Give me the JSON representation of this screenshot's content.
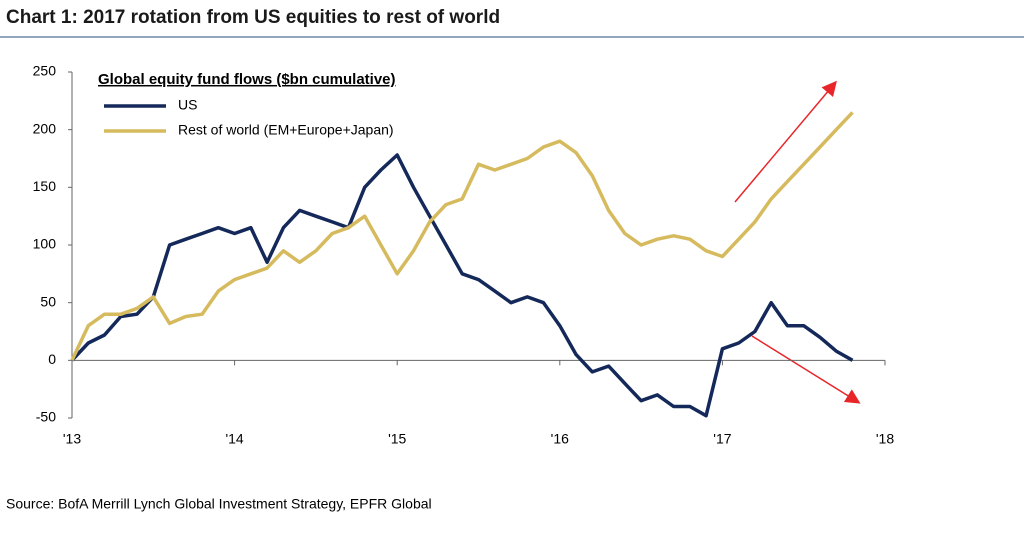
{
  "chart_data": {
    "type": "line",
    "title": "Chart 1: 2017 rotation from US equities to rest of world",
    "legend_title": "Global equity fund flows ($bn cumulative)",
    "source": "Source: BofA Merrill Lynch Global Investment Strategy, EPFR Global",
    "x": [
      2013.0,
      2013.1,
      2013.2,
      2013.3,
      2013.4,
      2013.5,
      2013.6,
      2013.7,
      2013.8,
      2013.9,
      2014.0,
      2014.1,
      2014.2,
      2014.3,
      2014.4,
      2014.5,
      2014.6,
      2014.7,
      2014.8,
      2014.9,
      2015.0,
      2015.1,
      2015.2,
      2015.3,
      2015.4,
      2015.5,
      2015.6,
      2015.7,
      2015.8,
      2015.9,
      2016.0,
      2016.1,
      2016.2,
      2016.3,
      2016.4,
      2016.5,
      2016.6,
      2016.7,
      2016.8,
      2016.9,
      2017.0,
      2017.1,
      2017.2,
      2017.3,
      2017.4,
      2017.5,
      2017.6,
      2017.7,
      2017.8
    ],
    "series": [
      {
        "name": "US",
        "color": "#14295a",
        "values": [
          0,
          15,
          22,
          38,
          40,
          55,
          100,
          105,
          110,
          115,
          110,
          115,
          85,
          115,
          130,
          125,
          120,
          115,
          150,
          165,
          178,
          150,
          125,
          100,
          75,
          70,
          60,
          50,
          55,
          50,
          30,
          5,
          -10,
          -5,
          -20,
          -35,
          -30,
          -40,
          -40,
          -48,
          10,
          15,
          25,
          50,
          30,
          30,
          20,
          8,
          0
        ]
      },
      {
        "name": "Rest of world (EM+Europe+Japan)",
        "color": "#d6ba5e",
        "values": [
          0,
          30,
          40,
          40,
          45,
          55,
          32,
          38,
          40,
          60,
          70,
          75,
          80,
          95,
          85,
          95,
          110,
          115,
          125,
          100,
          75,
          95,
          120,
          135,
          140,
          170,
          165,
          170,
          175,
          185,
          190,
          180,
          160,
          130,
          110,
          100,
          105,
          108,
          105,
          95,
          90,
          105,
          120,
          140,
          155,
          170,
          185,
          200,
          215
        ]
      }
    ],
    "xlim": [
      2013,
      2018
    ],
    "xticks": [
      {
        "value": 2013,
        "label": "'13"
      },
      {
        "value": 2014,
        "label": "'14"
      },
      {
        "value": 2015,
        "label": "'15"
      },
      {
        "value": 2016,
        "label": "'16"
      },
      {
        "value": 2017,
        "label": "'17"
      },
      {
        "value": 2018,
        "label": "'18"
      }
    ],
    "ylim": [
      -50,
      250
    ],
    "yticks": [
      -50,
      0,
      50,
      100,
      150,
      200,
      250
    ]
  }
}
